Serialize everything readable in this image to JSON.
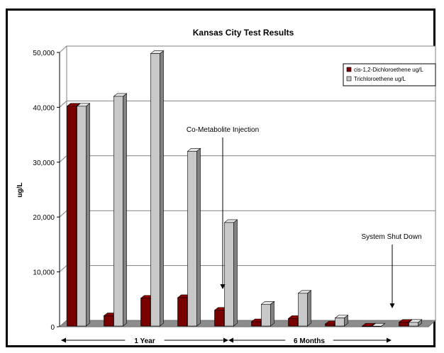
{
  "chart_data": {
    "type": "bar",
    "title": "Kansas City Test Results",
    "ylabel": "ug/L",
    "xlabel": "",
    "ylim": [
      0,
      50000
    ],
    "yticks": [
      0,
      10000,
      20000,
      30000,
      40000,
      50000
    ],
    "ytick_labels": [
      "0",
      "10,000",
      "20,000",
      "30,000",
      "40,000",
      "50,000"
    ],
    "gridlines": true,
    "legend_position": "top-right",
    "series": [
      {
        "name": "cis-1,2-Dichloroethene ug/L",
        "color": "#7a0000",
        "values": [
          40200,
          2000,
          5200,
          5300,
          3000,
          900,
          1500,
          500,
          100,
          800
        ]
      },
      {
        "name": "Trichloroethene ug/L",
        "color": "#c8c8c8",
        "values": [
          40200,
          42000,
          49800,
          32000,
          19000,
          4100,
          6100,
          1600,
          100,
          800
        ]
      }
    ],
    "annotations": [
      {
        "text": "Co-Metabolite Injection",
        "category_index": 4
      },
      {
        "text": "System Shut Down",
        "category_index": 8
      }
    ],
    "periods": [
      {
        "label": "1 Year",
        "from_index": 0,
        "to_index": 4
      },
      {
        "label": "6 Months",
        "from_index": 5,
        "to_index": 9
      }
    ]
  }
}
